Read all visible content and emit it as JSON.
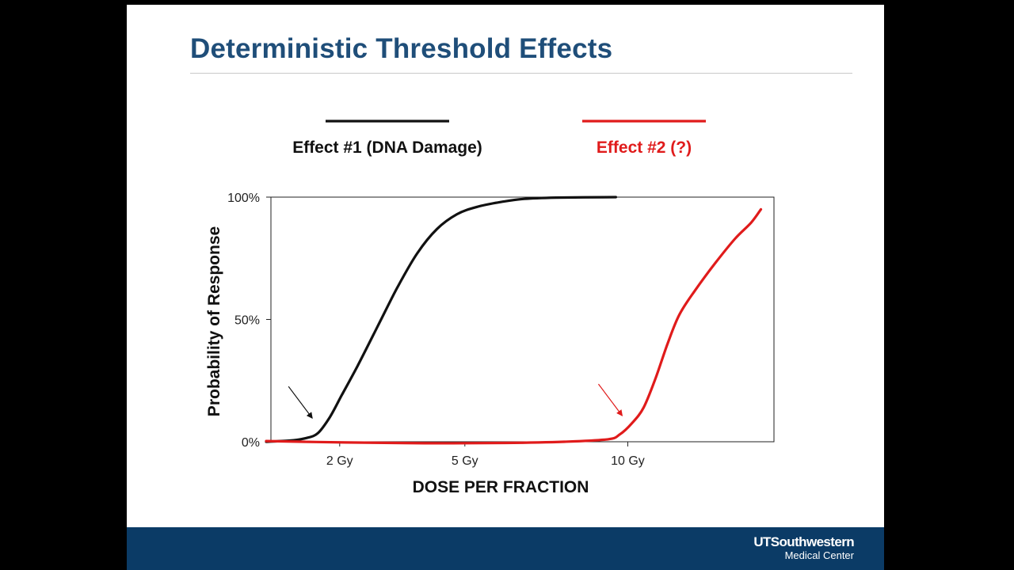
{
  "slide": {
    "title": "Deterministic Threshold Effects",
    "logo": {
      "main": "UTSouthwestern",
      "sub": "Medical Center"
    }
  },
  "colors": {
    "title": "#1f4e79",
    "footer": "#0b3b66",
    "series1": "#111111",
    "series2": "#e01b1b"
  },
  "chart_data": {
    "type": "line",
    "title": "",
    "xlabel": "DOSE PER FRACTION",
    "ylabel": "Probability of Response",
    "xlim": [
      0,
      12.5
    ],
    "ylim": [
      0,
      100
    ],
    "x_ticks": [
      {
        "value": 1.85,
        "label": "2 Gy"
      },
      {
        "value": 5,
        "label": "5 Gy"
      },
      {
        "value": 9.1,
        "label": "10 Gy"
      }
    ],
    "y_ticks": [
      {
        "value": 0,
        "label": "0%"
      },
      {
        "value": 50,
        "label": "50%"
      },
      {
        "value": 100,
        "label": "100%"
      }
    ],
    "grid": false,
    "legend_position": "top",
    "series": [
      {
        "name": "Effect #1 (DNA Damage)",
        "color": "#111111",
        "points": [
          [
            0,
            0
          ],
          [
            0.6,
            0.5
          ],
          [
            1.0,
            1.5
          ],
          [
            1.3,
            3.5
          ],
          [
            1.6,
            10
          ],
          [
            1.9,
            19
          ],
          [
            2.3,
            31
          ],
          [
            2.8,
            47
          ],
          [
            3.3,
            63
          ],
          [
            3.8,
            77
          ],
          [
            4.3,
            87
          ],
          [
            4.8,
            93
          ],
          [
            5.3,
            96
          ],
          [
            5.9,
            98
          ],
          [
            6.5,
            99.3
          ],
          [
            7.3,
            99.8
          ],
          [
            8.8,
            100
          ]
        ]
      },
      {
        "name": "Effect #2 (?)",
        "color": "#e01b1b",
        "points": [
          [
            0,
            0.3
          ],
          [
            2.0,
            -0.3
          ],
          [
            4.0,
            -0.6
          ],
          [
            6.0,
            -0.5
          ],
          [
            7.5,
            0
          ],
          [
            8.6,
            1
          ],
          [
            8.9,
            3
          ],
          [
            9.2,
            7.5
          ],
          [
            9.5,
            14
          ],
          [
            9.8,
            26
          ],
          [
            10.1,
            40
          ],
          [
            10.4,
            52
          ],
          [
            10.8,
            62
          ],
          [
            11.3,
            73
          ],
          [
            11.8,
            83
          ],
          [
            12.2,
            89.5
          ],
          [
            12.45,
            95
          ]
        ]
      }
    ],
    "threshold_arrows": [
      {
        "series": "Effect #1 (DNA Damage)",
        "x": 1.2,
        "y": 9
      },
      {
        "series": "Effect #2 (?)",
        "x": 9.0,
        "y": 10
      }
    ]
  }
}
